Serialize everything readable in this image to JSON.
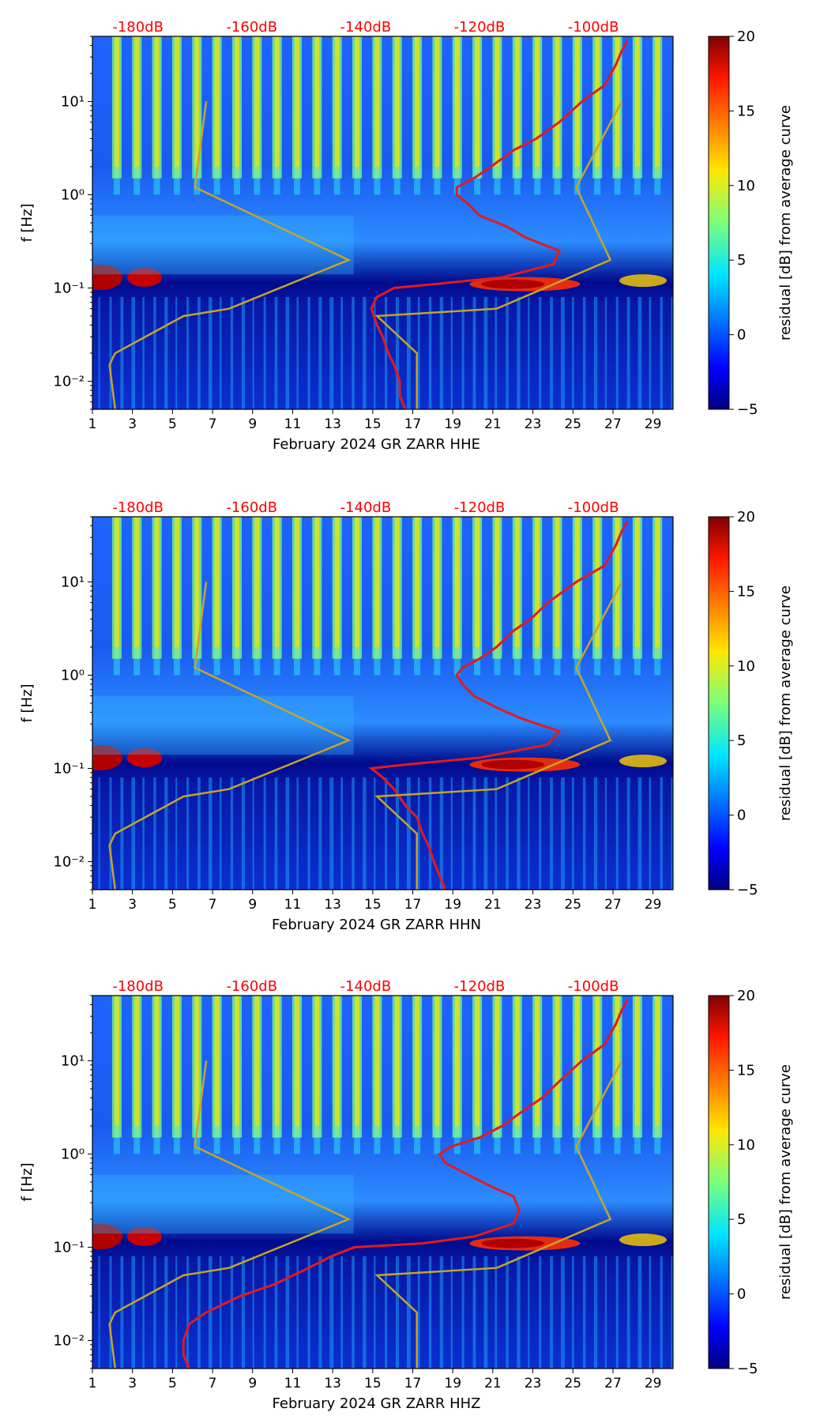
{
  "chart_data": [
    {
      "type": "heatmap",
      "title": "",
      "xlabel": "February 2024 GR ZARR  HHE",
      "ylabel": "f [Hz]",
      "x_ticks": [
        "1",
        "3",
        "5",
        "7",
        "9",
        "11",
        "13",
        "15",
        "17",
        "19",
        "21",
        "23",
        "25",
        "27",
        "29"
      ],
      "xlim": [
        1,
        30
      ],
      "y_ticks": [
        "10⁻²",
        "10⁻¹",
        "10⁰",
        "10¹"
      ],
      "ylim": [
        0.005,
        50
      ],
      "y_scale": "log",
      "top_axis_label_color": "#ff0000",
      "top_ticks": [
        "-180dB",
        "-160dB",
        "-140dB",
        "-120dB",
        "-100dB"
      ],
      "colorbar": {
        "label": "residual [dB] from average curve",
        "ticks": [
          "20",
          "15",
          "10",
          "5",
          "0",
          "−5"
        ],
        "range": [
          -5,
          20
        ]
      },
      "series": [
        {
          "name": "average-curve (top axis)",
          "color": "#e31a1c",
          "freq": [
            45,
            35,
            25,
            15,
            10,
            6,
            4,
            3,
            2,
            1.5,
            1.2,
            1,
            0.8,
            0.6,
            0.45,
            0.35,
            0.25,
            0.18,
            0.13,
            0.11,
            0.1,
            0.08,
            0.06,
            0.04,
            0.03,
            0.02,
            0.015,
            0.01,
            0.007,
            0.005
          ],
          "level_db": [
            -94,
            -95,
            -96,
            -98,
            -102,
            -106,
            -110,
            -114,
            -118,
            -121,
            -124,
            -124,
            -122,
            -120,
            -115,
            -112,
            -106,
            -107,
            -116,
            -128,
            -135,
            -138,
            -139,
            -138,
            -137,
            -136,
            -135,
            -134,
            -134,
            -133
          ]
        },
        {
          "name": "reference-model (top axis)",
          "color": "#c8a426",
          "freq": [
            10,
            1.2,
            0.2,
            0.06,
            0.05,
            0.02,
            0.015,
            0.005
          ],
          "level_db_left": [
            -168,
            -170,
            -143,
            -164,
            -172,
            -184,
            -185,
            -184
          ],
          "level_db_right": [
            -95,
            -103,
            -97,
            -117,
            -138,
            -131,
            -131,
            -131
          ]
        }
      ]
    },
    {
      "type": "heatmap",
      "title": "",
      "xlabel": "February 2024 GR ZARR  HHN",
      "ylabel": "f [Hz]",
      "x_ticks": [
        "1",
        "3",
        "5",
        "7",
        "9",
        "11",
        "13",
        "15",
        "17",
        "19",
        "21",
        "23",
        "25",
        "27",
        "29"
      ],
      "xlim": [
        1,
        30
      ],
      "y_ticks": [
        "10⁻²",
        "10⁻¹",
        "10⁰",
        "10¹"
      ],
      "ylim": [
        0.005,
        50
      ],
      "y_scale": "log",
      "top_axis_label_color": "#ff0000",
      "top_ticks": [
        "-180dB",
        "-160dB",
        "-140dB",
        "-120dB",
        "-100dB"
      ],
      "colorbar": {
        "label": "residual [dB] from average curve",
        "ticks": [
          "20",
          "15",
          "10",
          "5",
          "0",
          "−5"
        ],
        "range": [
          -5,
          20
        ]
      },
      "series": [
        {
          "name": "average-curve (top axis)",
          "color": "#e31a1c",
          "freq": [
            45,
            35,
            25,
            15,
            10,
            6,
            4,
            3,
            2,
            1.5,
            1.2,
            1,
            0.8,
            0.6,
            0.45,
            0.35,
            0.25,
            0.18,
            0.13,
            0.11,
            0.1,
            0.08,
            0.06,
            0.04,
            0.03,
            0.02,
            0.015,
            0.01,
            0.007,
            0.005
          ],
          "level_db": [
            -94,
            -95,
            -96,
            -98,
            -103,
            -108,
            -111,
            -114,
            -117,
            -120,
            -123,
            -124,
            -123,
            -121,
            -117,
            -113,
            -106,
            -108,
            -120,
            -133,
            -139,
            -137,
            -135,
            -133,
            -131,
            -130,
            -129,
            -128,
            -127,
            -126
          ]
        },
        {
          "name": "reference-model (top axis)",
          "color": "#c8a426",
          "freq": [
            10,
            1.2,
            0.2,
            0.06,
            0.05,
            0.02,
            0.015,
            0.005
          ],
          "level_db_left": [
            -168,
            -170,
            -143,
            -164,
            -172,
            -184,
            -185,
            -184
          ],
          "level_db_right": [
            -95,
            -103,
            -97,
            -117,
            -138,
            -131,
            -131,
            -131
          ]
        }
      ]
    },
    {
      "type": "heatmap",
      "title": "",
      "xlabel": "February 2024 GR ZARR  HHZ",
      "ylabel": "f [Hz]",
      "x_ticks": [
        "1",
        "3",
        "5",
        "7",
        "9",
        "11",
        "13",
        "15",
        "17",
        "19",
        "21",
        "23",
        "25",
        "27",
        "29"
      ],
      "xlim": [
        1,
        30
      ],
      "y_ticks": [
        "10⁻²",
        "10⁻¹",
        "10⁰",
        "10¹"
      ],
      "ylim": [
        0.005,
        50
      ],
      "y_scale": "log",
      "top_axis_label_color": "#ff0000",
      "top_ticks": [
        "-180dB",
        "-160dB",
        "-140dB",
        "-120dB",
        "-100dB"
      ],
      "colorbar": {
        "label": "residual [dB] from average curve",
        "ticks": [
          "20",
          "15",
          "10",
          "5",
          "0",
          "−5"
        ],
        "range": [
          -5,
          20
        ]
      },
      "series": [
        {
          "name": "average-curve (top axis)",
          "color": "#e31a1c",
          "freq": [
            45,
            35,
            25,
            15,
            10,
            6,
            4,
            3,
            2,
            1.5,
            1.2,
            1,
            0.8,
            0.6,
            0.45,
            0.35,
            0.25,
            0.18,
            0.13,
            0.11,
            0.1,
            0.08,
            0.06,
            0.04,
            0.03,
            0.02,
            0.015,
            0.01,
            0.007,
            0.005
          ],
          "level_db": [
            -94,
            -95,
            -96,
            -98,
            -102,
            -106,
            -109,
            -112,
            -116,
            -120,
            -125,
            -127,
            -126,
            -122,
            -118,
            -114,
            -113,
            -114,
            -121,
            -130,
            -142,
            -146,
            -150,
            -156,
            -162,
            -168,
            -171,
            -172,
            -172,
            -171
          ]
        },
        {
          "name": "reference-model (top axis)",
          "color": "#c8a426",
          "freq": [
            10,
            1.2,
            0.2,
            0.06,
            0.05,
            0.02,
            0.015,
            0.005
          ],
          "level_db_left": [
            -168,
            -170,
            -143,
            -164,
            -172,
            -184,
            -185,
            -184
          ],
          "level_db_right": [
            -95,
            -103,
            -97,
            -117,
            -138,
            -131,
            -131,
            -131
          ]
        }
      ]
    }
  ]
}
